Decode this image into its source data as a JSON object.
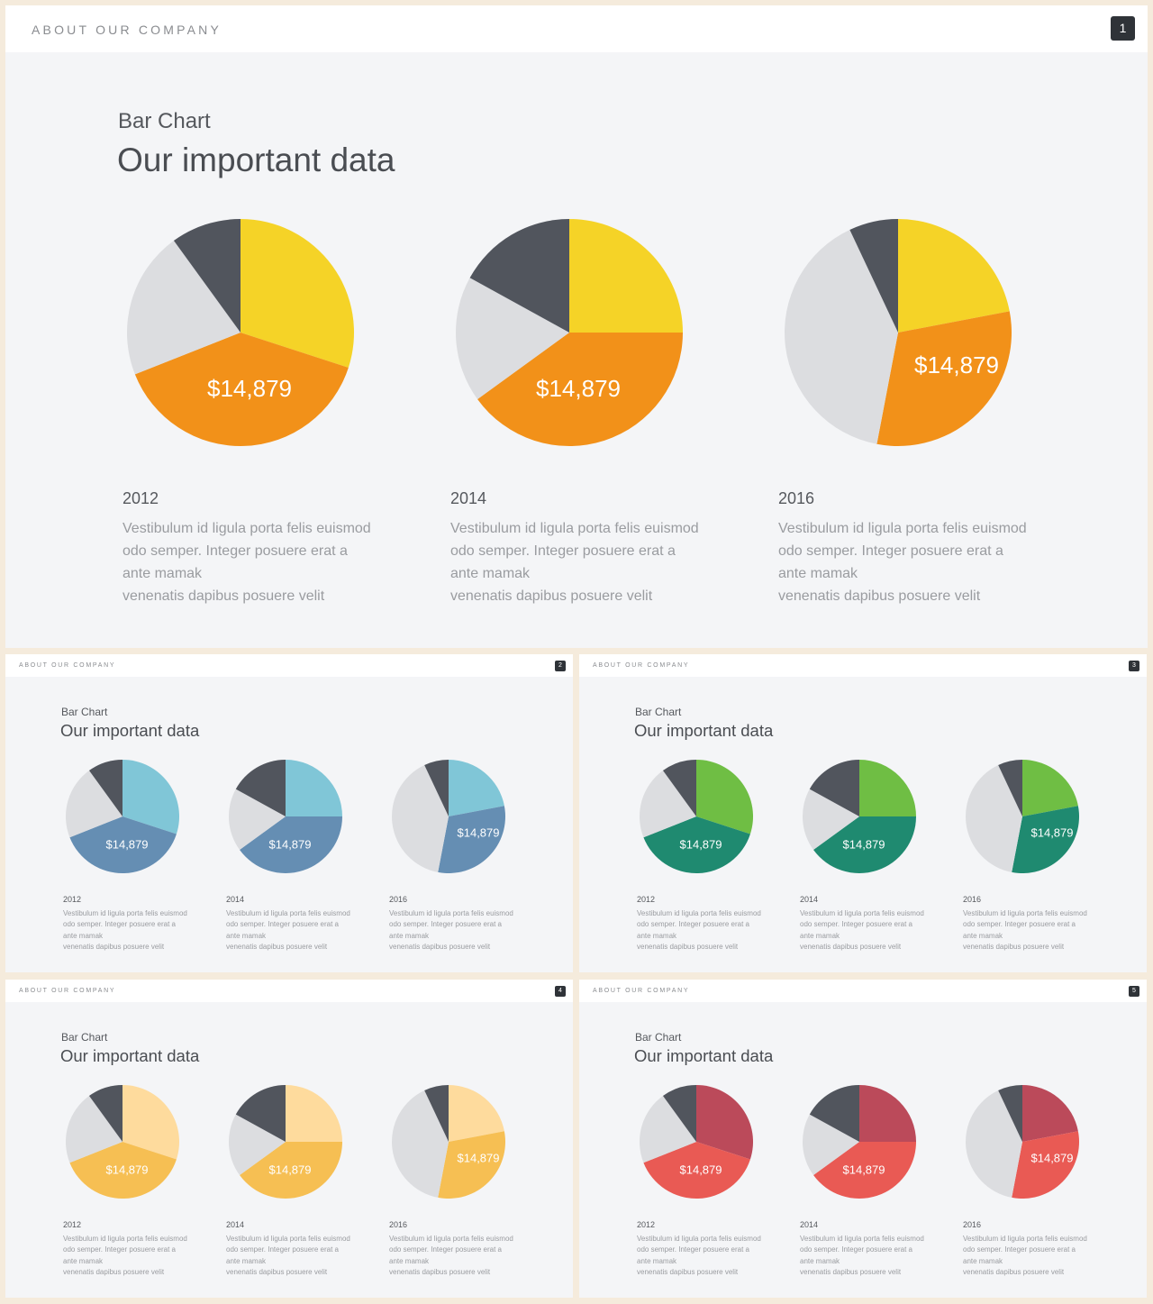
{
  "slides": [
    {
      "header": "ABOUT OUR COMPANY",
      "page": "1",
      "subtitle": "Bar Chart",
      "title": "Our important data",
      "colors": {
        "main": "#f5d327",
        "value": "#f29119",
        "light": "#dcdde0",
        "dark": "#51555d"
      }
    },
    {
      "header": "ABOUT OUR COMPANY",
      "page": "2",
      "subtitle": "Bar Chart",
      "title": "Our important data",
      "colors": {
        "main": "#80c6d7",
        "value": "#658eb3",
        "light": "#dcdde0",
        "dark": "#51555d"
      }
    },
    {
      "header": "ABOUT OUR COMPANY",
      "page": "3",
      "subtitle": "Bar Chart",
      "title": "Our important data",
      "colors": {
        "main": "#6fbe44",
        "value": "#1f8a70",
        "light": "#dcdde0",
        "dark": "#51555d"
      }
    },
    {
      "header": "ABOUT OUR COMPANY",
      "page": "4",
      "subtitle": "Bar Chart",
      "title": "Our important data",
      "colors": {
        "main": "#fedb9d",
        "value": "#f6bf53",
        "light": "#dcdde0",
        "dark": "#51555d"
      }
    },
    {
      "header": "ABOUT OUR COMPANY",
      "page": "5",
      "subtitle": "Bar Chart",
      "title": "Our important data",
      "colors": {
        "main": "#bb4a5a",
        "value": "#e95a54",
        "light": "#dcdde0",
        "dark": "#51555d"
      }
    }
  ],
  "chart_data": [
    {
      "type": "pie",
      "category": "2012",
      "value_label": "$14,879",
      "description": [
        "Vestibulum id ligula porta felis euismod",
        "odo semper. Integer posuere erat a",
        "ante mamak",
        "venenatis dapibus posuere velit"
      ],
      "slices_ppt": [
        30,
        39,
        21,
        10
      ]
    },
    {
      "type": "pie",
      "category": "2014",
      "value_label": "$14,879",
      "description": [
        "Vestibulum id ligula porta felis euismod",
        "odo semper. Integer posuere erat a",
        "ante mamak",
        "venenatis dapibus posuere velit"
      ],
      "slices_ppt": [
        25,
        40,
        18,
        17
      ]
    },
    {
      "type": "pie",
      "category": "2016",
      "value_label": "$14,879",
      "description": [
        "Vestibulum id ligula porta felis euismod",
        "odo semper. Integer posuere erat a",
        "ante mamak",
        "venenatis dapibus posuere velit"
      ],
      "slices_ppt": [
        22,
        31,
        40,
        7
      ]
    }
  ]
}
